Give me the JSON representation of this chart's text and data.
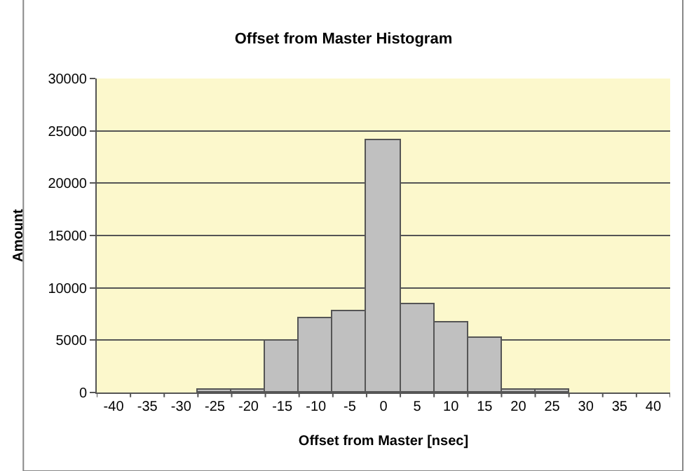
{
  "chart_data": {
    "type": "bar",
    "title": "Offset from Master Histogram",
    "xlabel": "Offset from Master [nsec]",
    "ylabel": "Amount",
    "categories": [
      "-40",
      "-35",
      "-30",
      "-25",
      "-20",
      "-15",
      "-10",
      "-5",
      "0",
      "5",
      "10",
      "15",
      "20",
      "25",
      "30",
      "35",
      "40"
    ],
    "values": [
      0,
      0,
      0,
      300,
      300,
      4900,
      7100,
      7800,
      24100,
      8500,
      6700,
      5200,
      300,
      300,
      0,
      0,
      0
    ],
    "color": "#c0c0c0",
    "ylim": [
      0,
      30000
    ],
    "yticks": [
      0,
      5000,
      10000,
      15000,
      20000,
      25000,
      30000
    ],
    "grid": "y"
  }
}
